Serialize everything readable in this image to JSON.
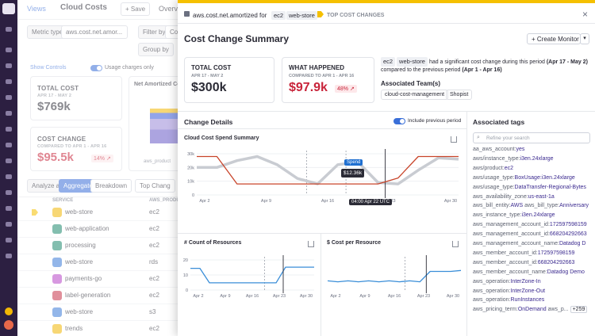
{
  "bg": {
    "views": "Views",
    "title": "Cloud Costs",
    "save": "+ Save",
    "overview": "Overvi",
    "metric_type_label": "Metric type",
    "metric_value": "aws.cost.net.amor...",
    "filter_label": "Filter by",
    "filter_value": "Cost",
    "group_label": "Group by",
    "show_controls": "Show Controls",
    "usage_only": "Usage charges only",
    "total_cost": {
      "label": "TOTAL COST",
      "range": "APR 17 - MAY 2",
      "value": "$769k"
    },
    "cost_change": {
      "label": "COST CHANGE",
      "range": "COMPARED TO APR 1 - APR 16",
      "value": "$95.5k",
      "pct": "14%"
    },
    "net_amortized": "Net Amortized Co",
    "legend_item": "aws_product",
    "analyze_as": "Analyze as",
    "aggregate": "Aggregate",
    "breakdown": "Breakdown",
    "top_changes": "Top Chang",
    "col_service": "SERVICE",
    "col_product": "AWS_PRODU",
    "rows": [
      {
        "service": "web-store",
        "product": "ec2",
        "color": "#f2b705"
      },
      {
        "service": "web-application",
        "product": "ec2",
        "color": "#1f8a6e"
      },
      {
        "service": "processing",
        "product": "ec2",
        "color": "#1f8a6e"
      },
      {
        "service": "web-store",
        "product": "rds",
        "color": "#3b7bd8"
      },
      {
        "service": "payments-go",
        "product": "ec2",
        "color": "#b844c8"
      },
      {
        "service": "label-generation",
        "product": "ec2",
        "color": "#c8344a"
      },
      {
        "service": "web-store",
        "product": "s3",
        "color": "#3b7bd8"
      },
      {
        "service": "trends",
        "product": "ec2",
        "color": "#f2b705"
      }
    ]
  },
  "panel": {
    "header": {
      "metric": "aws.cost.net.amortized for",
      "tag1": "ec2",
      "tag2": "web-store",
      "section": "TOP COST CHANGES"
    },
    "title": "Cost Change Summary",
    "create_monitor": "+ Create Monitor",
    "total_cost": {
      "label": "TOTAL COST",
      "range": "APR 17 - MAY 2",
      "value": "$300k"
    },
    "what_happened": {
      "label": "WHAT HAPPENED",
      "range": "COMPARED TO APR 1 - APR 16",
      "value": "$97.9k",
      "pct": "48%"
    },
    "summary": {
      "tag1": "ec2",
      "tag2": "web-store",
      "text1": "had a significant cost change during this period",
      "period": "(Apr 17 - May 2)",
      "text2": "compared to the previous period",
      "prev": "(Apr 1 - Apr 16)"
    },
    "teams_title": "Associated Team(s)",
    "teams": [
      "cloud-cost-management",
      "Shopist"
    ],
    "change_details": "Change Details",
    "include_previous": "Include previous period",
    "spend_summary_title": "Cloud Cost Spend Summary",
    "count_title": "# Count of Resources",
    "cost_per_title": "$ Cost per Resource",
    "tooltip_label": "Spend",
    "tooltip_value": "$12.36k",
    "tooltip_time": "04:00 Apr 22 UTC",
    "tags_title": "Associated tags",
    "tags_search_placeholder": "Refine your search",
    "more_tags": "+259"
  },
  "chart_data": [
    {
      "type": "line",
      "title": "Cloud Cost Spend Summary",
      "x_ticks": [
        "Apr 2",
        "Apr 9",
        "Apr 16",
        "Apr 23",
        "Apr 30"
      ],
      "y_ticks": [
        "0",
        "10k",
        "20k",
        "30k"
      ],
      "ylim": [
        0,
        30000
      ],
      "series": [
        {
          "name": "Spend",
          "values": [
            28000,
            28000,
            8000,
            8000,
            8000,
            8000,
            8000,
            8000,
            8000,
            8000,
            12360,
            28000,
            28000,
            28000
          ]
        },
        {
          "name": "previous period",
          "values": [
            20000,
            20000,
            25000,
            28000,
            22000,
            12000,
            8000,
            22000,
            24000,
            9000,
            8000,
            18000,
            27000,
            26000
          ]
        }
      ]
    },
    {
      "type": "line",
      "title": "# Count of Resources",
      "x_ticks": [
        "Apr 2",
        "Apr 9",
        "Apr 16",
        "Apr 23",
        "Apr 30"
      ],
      "y_ticks": [
        "0",
        "10",
        "20"
      ],
      "ylim": [
        0,
        25
      ],
      "series": [
        {
          "values": [
            18,
            18,
            6,
            6,
            6,
            6,
            6,
            6,
            6,
            6,
            19,
            19,
            19,
            19
          ]
        }
      ]
    },
    {
      "type": "line",
      "title": "$ Cost per Resource",
      "x_ticks": [
        "Apr 2",
        "Apr 9",
        "Apr 16",
        "Apr 23",
        "Apr 30"
      ],
      "series": [
        {
          "values": [
            45,
            44,
            45,
            44,
            45,
            44,
            45,
            44,
            45,
            44,
            55,
            55,
            55,
            56
          ]
        }
      ]
    }
  ],
  "tags": [
    {
      "k": "aa_aws_account:",
      "v": "yes"
    },
    {
      "k": "aws/instance_type:",
      "v": "i3en.24xlarge"
    },
    {
      "k": "aws/product:",
      "v": "ec2"
    },
    {
      "k": "aws/usage_type:",
      "v": "BoxUsage:i3en.24xlarge"
    },
    {
      "k": "aws/usage_type:",
      "v": "DataTransfer-Regional-Bytes"
    },
    {
      "k": "aws_availability_zone:",
      "v": "us-east-1a"
    },
    {
      "k": "aws_bill_entity:",
      "v": "AWS",
      "k2": "aws_bill_type:",
      "v2": "Anniversary"
    },
    {
      "k": "aws_instance_type:",
      "v": "i3en.24xlarge"
    },
    {
      "k": "aws_management_account_id:",
      "v": "172597598159"
    },
    {
      "k": "aws_management_account_id:",
      "v": "668204292663"
    },
    {
      "k": "aws_management_account_name:",
      "v": "Datadog D"
    },
    {
      "k": "aws_member_account_id:",
      "v": "172597598159"
    },
    {
      "k": "aws_member_account_id:",
      "v": "668204292663"
    },
    {
      "k": "aws_member_account_name:",
      "v": "Datadog Demo"
    },
    {
      "k": "aws_operation:",
      "v": "InterZone-In"
    },
    {
      "k": "aws_operation:",
      "v": "InterZone-Out"
    },
    {
      "k": "aws_operation:",
      "v": "RunInstances"
    },
    {
      "k": "aws_pricing_term:",
      "v": "OnDemand",
      "k2": "aws_p...",
      "v2": ""
    }
  ]
}
